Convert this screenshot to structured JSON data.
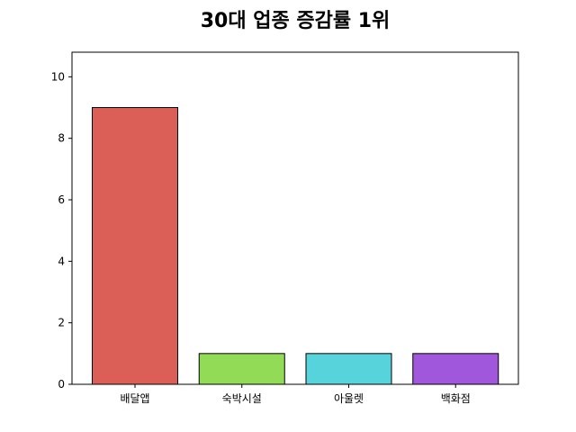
{
  "chart_data": {
    "type": "bar",
    "title": "30대 업종 증감률 1위",
    "xlabel": "",
    "ylabel": "",
    "categories": [
      "배달앱",
      "숙박시설",
      "아울렛",
      "백화점"
    ],
    "values": [
      9,
      1,
      1,
      1
    ],
    "colors": [
      "#db5f57",
      "#91db57",
      "#57d3db",
      "#a157db"
    ],
    "edge_color": "#000000",
    "ylim": [
      0,
      10.8
    ],
    "yticks": [
      0,
      2,
      4,
      6,
      8,
      10
    ],
    "grid": false,
    "legend": "none"
  }
}
